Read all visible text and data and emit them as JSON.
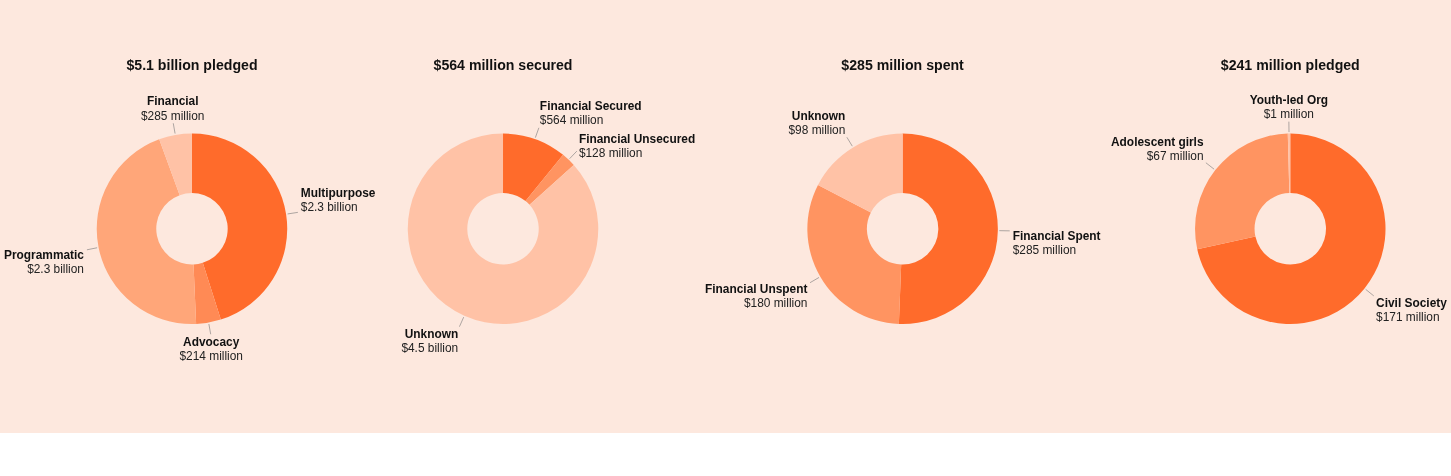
{
  "chart_data": [
    {
      "type": "donut",
      "title": "$5.1 billion pledged",
      "categories": [
        "Multipurpose",
        "Advocacy",
        "Programmatic",
        "Financial"
      ],
      "values": [
        2300000000,
        214000000,
        2300000000,
        285000000
      ],
      "value_labels": [
        "$2.3 billion",
        "$214 million",
        "$2.3 billion",
        "$285 million"
      ],
      "colors": [
        "#ff6b2b",
        "#ff8a55",
        "#ffa679",
        "#ffc2a6"
      ]
    },
    {
      "type": "donut",
      "title": "$564 million secured",
      "categories": [
        "Financial Secured",
        "Financial Unsecured",
        "Unknown"
      ],
      "values": [
        564000000,
        128000000,
        4500000000
      ],
      "value_labels": [
        "$564 million",
        "$128 million",
        "$4.5 billion"
      ],
      "colors": [
        "#ff6b2b",
        "#ff9461",
        "#ffc2a6"
      ]
    },
    {
      "type": "donut",
      "title": "$285 million spent",
      "categories": [
        "Financial Spent",
        "Financial Unspent",
        "Unknown"
      ],
      "values": [
        285000000,
        180000000,
        98000000
      ],
      "value_labels": [
        "$285 million",
        "$180 million",
        "$98 million"
      ],
      "colors": [
        "#ff6b2b",
        "#ff9461",
        "#ffc2a6"
      ]
    },
    {
      "type": "donut",
      "title": "$241 million pledged",
      "categories": [
        "Civil Society",
        "Adolescent girls",
        "Youth-led Org"
      ],
      "values": [
        171000000,
        67000000,
        1000000
      ],
      "value_labels": [
        "$171 million",
        "$67 million",
        "$1 million"
      ],
      "colors": [
        "#ff6b2b",
        "#ff9461",
        "#ffc2a6"
      ]
    }
  ]
}
